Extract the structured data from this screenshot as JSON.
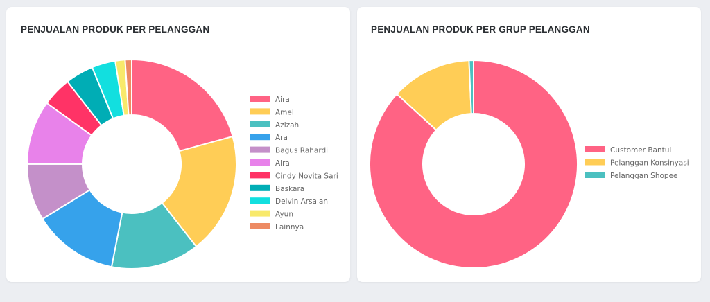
{
  "charts": [
    {
      "title": "PENJUALAN PRODUK PER PELANGGAN",
      "chart_data": {
        "type": "doughnut",
        "title": "PENJUALAN PRODUK PER PELANGGAN",
        "legend_position": "right",
        "labels": [
          "Aira",
          "Amel",
          "Azizah",
          "Ara",
          "Bagus Rahardi",
          "Aira",
          "Cindy Novita Sari",
          "Baskara",
          "Delvin Arsalan",
          "Ayun",
          "Lainnya"
        ],
        "values": [
          20.5,
          18.5,
          13.5,
          13.0,
          8.7,
          9.8,
          4.5,
          4.3,
          3.6,
          1.5,
          1.0
        ],
        "colors": [
          "#ff6384",
          "#ffcd56",
          "#4bc0c0",
          "#36a2eb",
          "#c490c9",
          "#e882ea",
          "#ff3366",
          "#00adb5",
          "#12dfdf",
          "#f8e96b",
          "#ed8a63"
        ]
      }
    },
    {
      "title": "PENJUALAN PRODUK PER GRUP PELANGGAN",
      "chart_data": {
        "type": "doughnut",
        "title": "PENJUALAN PRODUK PER GRUP PELANGGAN",
        "legend_position": "right",
        "labels": [
          "Customer Bantul",
          "Pelanggan Konsinyasi",
          "Pelanggan Shopee"
        ],
        "values": [
          86.8,
          12.5,
          0.7
        ],
        "colors": [
          "#ff6384",
          "#ffcd56",
          "#4bc0c0"
        ]
      }
    }
  ]
}
